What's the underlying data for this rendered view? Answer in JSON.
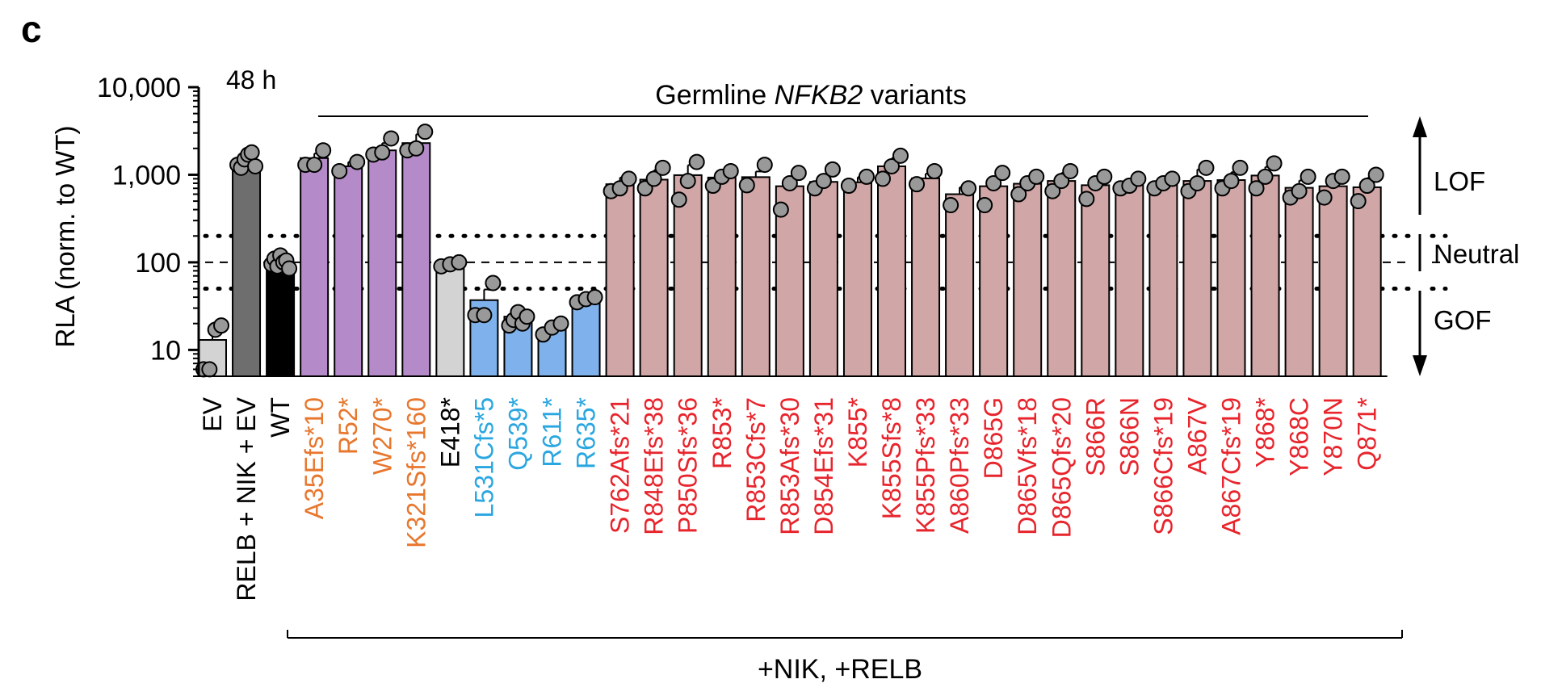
{
  "panel_label": "c",
  "chart_data": {
    "type": "bar",
    "title": "Germline NFKB2 variants",
    "title_parts": {
      "prefix": "Germline ",
      "gene": "NFKB2",
      "suffix": " variants"
    },
    "time_label": "48 h",
    "ylabel": "RLA (norm. to WT)",
    "yscale": "log",
    "ylim": [
      5,
      10000
    ],
    "yticks": [
      {
        "value": 10,
        "label": "10"
      },
      {
        "value": 100,
        "label": "100"
      },
      {
        "value": 1000,
        "label": "1,000"
      },
      {
        "value": 10000,
        "label": "10,000"
      }
    ],
    "reference_lines": [
      {
        "value": 200,
        "style": "dotted"
      },
      {
        "value": 100,
        "style": "dashed"
      },
      {
        "value": 50,
        "style": "dotted"
      }
    ],
    "group_bracket_label": "+NIK, +RELB",
    "side_labels": {
      "lof": "LOF",
      "neutral": "Neutral",
      "gof": "GOF"
    },
    "categories": [
      {
        "label": "EV",
        "mean": 13,
        "error": 3,
        "points": [
          6,
          6,
          17,
          19
        ],
        "fill": "#d3d3d3",
        "label_color": "#000000"
      },
      {
        "label": "RELB + NIK + EV",
        "mean": 1380,
        "error": 250,
        "points": [
          1300,
          1200,
          1500,
          1700,
          1800,
          1250
        ],
        "fill": "#6e6e6e",
        "label_color": "#000000"
      },
      {
        "label": "WT",
        "mean": 100,
        "error": 15,
        "points": [
          95,
          110,
          90,
          120,
          100,
          105,
          85
        ],
        "fill": "#000000",
        "label_color": "#000000"
      },
      {
        "label": "A35Efs*10",
        "mean": 1550,
        "error": 200,
        "points": [
          1300,
          1300,
          1900
        ],
        "fill": "#b48bc8",
        "label_color": "#e8772e"
      },
      {
        "label": "R52*",
        "mean": 1250,
        "error": 150,
        "points": [
          1100,
          1400
        ],
        "fill": "#b48bc8",
        "label_color": "#e8772e"
      },
      {
        "label": "W270*",
        "mean": 1900,
        "error": 400,
        "points": [
          1700,
          1800,
          2600
        ],
        "fill": "#b48bc8",
        "label_color": "#e8772e"
      },
      {
        "label": "K321Sfs*160",
        "mean": 2300,
        "error": 600,
        "points": [
          1900,
          2000,
          3100
        ],
        "fill": "#b48bc8",
        "label_color": "#e8772e"
      },
      {
        "label": "E418*",
        "mean": 93,
        "error": 8,
        "points": [
          90,
          95,
          100
        ],
        "fill": "#d3d3d3",
        "label_color": "#000000"
      },
      {
        "label": "L531Cfs*5",
        "mean": 37,
        "error": 12,
        "points": [
          25,
          25,
          58
        ],
        "fill": "#7fb2ec",
        "label_color": "#2aa6e0"
      },
      {
        "label": "Q539*",
        "mean": 24,
        "error": 5,
        "points": [
          19,
          22,
          27,
          20,
          24
        ],
        "fill": "#7fb2ec",
        "label_color": "#2aa6e0"
      },
      {
        "label": "R611*",
        "mean": 17,
        "error": 2,
        "points": [
          15,
          18,
          20
        ],
        "fill": "#7fb2ec",
        "label_color": "#2aa6e0"
      },
      {
        "label": "R635*",
        "mean": 37,
        "error": 3,
        "points": [
          35,
          38,
          40
        ],
        "fill": "#7fb2ec",
        "label_color": "#2aa6e0"
      },
      {
        "label": "S762Afs*21",
        "mean": 780,
        "error": 150,
        "points": [
          650,
          700,
          900
        ],
        "fill": "#d1a6a6",
        "label_color": "#e8242c"
      },
      {
        "label": "R848Efs*38",
        "mean": 880,
        "error": 250,
        "points": [
          700,
          900,
          1200
        ],
        "fill": "#d1a6a6",
        "label_color": "#e8242c"
      },
      {
        "label": "P850Sfs*36",
        "mean": 990,
        "error": 300,
        "points": [
          520,
          850,
          1400
        ],
        "fill": "#d1a6a6",
        "label_color": "#e8242c"
      },
      {
        "label": "R853*",
        "mean": 930,
        "error": 150,
        "points": [
          750,
          950,
          1100
        ],
        "fill": "#d1a6a6",
        "label_color": "#e8242c"
      },
      {
        "label": "R853Cfs*7",
        "mean": 940,
        "error": 150,
        "points": [
          760,
          1300
        ],
        "fill": "#d1a6a6",
        "label_color": "#e8242c"
      },
      {
        "label": "R853Afs*30",
        "mean": 740,
        "error": 200,
        "points": [
          400,
          800,
          1050
        ],
        "fill": "#d1a6a6",
        "label_color": "#e8242c"
      },
      {
        "label": "D854Efs*31",
        "mean": 830,
        "error": 180,
        "points": [
          700,
          850,
          1150
        ],
        "fill": "#d1a6a6",
        "label_color": "#e8242c"
      },
      {
        "label": "K855*",
        "mean": 820,
        "error": 120,
        "points": [
          750,
          950
        ],
        "fill": "#d1a6a6",
        "label_color": "#e8242c"
      },
      {
        "label": "K855Sfs*8",
        "mean": 1250,
        "error": 300,
        "points": [
          900,
          1250,
          1650
        ],
        "fill": "#d1a6a6",
        "label_color": "#e8242c"
      },
      {
        "label": "K855Pfs*33",
        "mean": 910,
        "error": 120,
        "points": [
          780,
          1100
        ],
        "fill": "#d1a6a6",
        "label_color": "#e8242c"
      },
      {
        "label": "A860Pfs*33",
        "mean": 600,
        "error": 120,
        "points": [
          450,
          700
        ],
        "fill": "#d1a6a6",
        "label_color": "#e8242c"
      },
      {
        "label": "D865G",
        "mean": 740,
        "error": 200,
        "points": [
          450,
          800,
          1050
        ],
        "fill": "#d1a6a6",
        "label_color": "#e8242c"
      },
      {
        "label": "D865Vfs*18",
        "mean": 790,
        "error": 150,
        "points": [
          600,
          800,
          950
        ],
        "fill": "#d1a6a6",
        "label_color": "#e8242c"
      },
      {
        "label": "D865Qfs*20",
        "mean": 850,
        "error": 200,
        "points": [
          650,
          850,
          1100
        ],
        "fill": "#d1a6a6",
        "label_color": "#e8242c"
      },
      {
        "label": "S866R",
        "mean": 760,
        "error": 150,
        "points": [
          530,
          800,
          950
        ],
        "fill": "#d1a6a6",
        "label_color": "#e8242c"
      },
      {
        "label": "S866N",
        "mean": 760,
        "error": 120,
        "points": [
          700,
          750,
          900
        ],
        "fill": "#d1a6a6",
        "label_color": "#e8242c"
      },
      {
        "label": "S866Cfs*19",
        "mean": 780,
        "error": 120,
        "points": [
          700,
          800,
          900
        ],
        "fill": "#d1a6a6",
        "label_color": "#e8242c"
      },
      {
        "label": "A867V",
        "mean": 850,
        "error": 300,
        "points": [
          650,
          800,
          1200
        ],
        "fill": "#d1a6a6",
        "label_color": "#e8242c"
      },
      {
        "label": "A867Cfs*19",
        "mean": 870,
        "error": 200,
        "points": [
          700,
          850,
          1200
        ],
        "fill": "#d1a6a6",
        "label_color": "#e8242c"
      },
      {
        "label": "Y868*",
        "mean": 980,
        "error": 250,
        "points": [
          700,
          950,
          1350
        ],
        "fill": "#d1a6a6",
        "label_color": "#e8242c"
      },
      {
        "label": "Y868C",
        "mean": 710,
        "error": 150,
        "points": [
          550,
          650,
          950
        ],
        "fill": "#d1a6a6",
        "label_color": "#e8242c"
      },
      {
        "label": "Y870N",
        "mean": 740,
        "error": 150,
        "points": [
          550,
          850,
          950
        ],
        "fill": "#d1a6a6",
        "label_color": "#e8242c"
      },
      {
        "label": "Q871*",
        "mean": 720,
        "error": 200,
        "points": [
          500,
          750,
          1000
        ],
        "fill": "#d1a6a6",
        "label_color": "#e8242c"
      }
    ]
  }
}
